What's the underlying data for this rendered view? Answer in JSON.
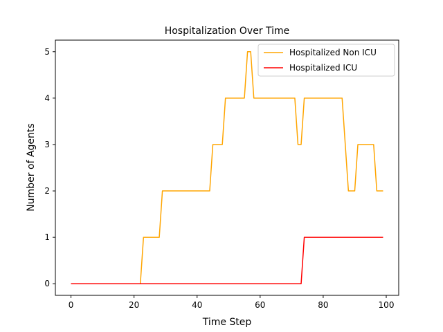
{
  "chart_data": {
    "type": "line",
    "title": "Hospitalization Over Time",
    "xlabel": "Time Step",
    "ylabel": "Number of Agents",
    "xlim": [
      -4.95,
      103.95
    ],
    "ylim": [
      -0.25,
      5.25
    ],
    "xticks": [
      "0",
      "20",
      "40",
      "60",
      "80",
      "100"
    ],
    "yticks": [
      "0",
      "1",
      "2",
      "3",
      "4",
      "5"
    ],
    "grid": false,
    "legend_position": "top-right",
    "series": [
      {
        "name": "Hospitalized Non ICU",
        "color": "#ffa500",
        "points": [
          [
            0,
            0
          ],
          [
            22,
            0
          ],
          [
            23,
            1
          ],
          [
            28,
            1
          ],
          [
            29,
            2
          ],
          [
            44,
            2
          ],
          [
            45,
            3
          ],
          [
            48,
            3
          ],
          [
            49,
            4
          ],
          [
            55,
            4
          ],
          [
            56,
            5
          ],
          [
            57,
            5
          ],
          [
            58,
            4
          ],
          [
            71,
            4
          ],
          [
            72,
            3
          ],
          [
            73,
            3
          ],
          [
            74,
            4
          ],
          [
            86,
            4
          ],
          [
            88,
            2
          ],
          [
            90,
            2
          ],
          [
            91,
            3
          ],
          [
            96,
            3
          ],
          [
            97,
            2
          ],
          [
            99,
            2
          ]
        ]
      },
      {
        "name": "Hospitalized ICU",
        "color": "#ff0000",
        "points": [
          [
            0,
            0
          ],
          [
            73,
            0
          ],
          [
            74,
            1
          ],
          [
            99,
            1
          ]
        ]
      }
    ]
  }
}
